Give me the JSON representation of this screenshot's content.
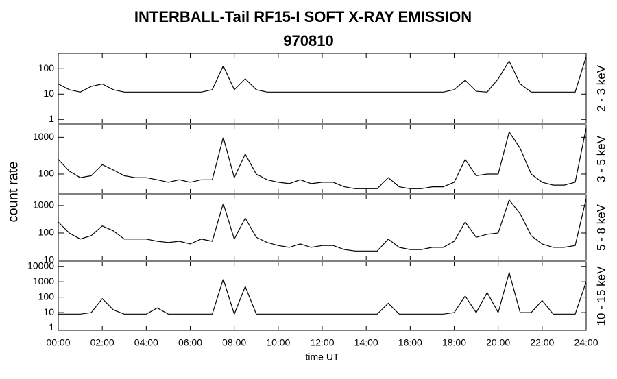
{
  "chart_data": [
    {
      "type": "line",
      "title": "INTERBALL-Tail RF15-I SOFT X-RAY EMISSION",
      "subtitle": "970810",
      "ylabel": "count rate",
      "channel": "2 - 3 keV",
      "yscale": "log",
      "color": "#000000",
      "xlim": [
        0,
        24
      ],
      "ylim": [
        0.7,
        400
      ],
      "yticks": [
        1,
        10,
        100
      ],
      "x": [
        0,
        0.5,
        1,
        1.5,
        2,
        2.5,
        3,
        3.5,
        4,
        4.5,
        5,
        5.5,
        6,
        6.5,
        7,
        7.5,
        8,
        8.5,
        9,
        9.5,
        10,
        10.5,
        11,
        11.5,
        12,
        12.5,
        13,
        13.5,
        14,
        14.5,
        15,
        15.5,
        16,
        16.5,
        17,
        17.5,
        18,
        18.5,
        19,
        19.5,
        20,
        20.5,
        21,
        21.5,
        22,
        22.5,
        23,
        23.5,
        24
      ],
      "values": [
        25,
        15,
        12,
        20,
        25,
        15,
        12,
        12,
        12,
        12,
        12,
        12,
        12,
        12,
        15,
        130,
        15,
        40,
        15,
        12,
        12,
        12,
        12,
        12,
        12,
        12,
        12,
        12,
        12,
        12,
        12,
        12,
        12,
        12,
        12,
        12,
        15,
        35,
        13,
        12,
        40,
        200,
        25,
        12,
        12,
        12,
        12,
        12,
        300
      ]
    },
    {
      "type": "line",
      "channel": "3 - 5 keV",
      "yscale": "log",
      "color": "#000000",
      "xlim": [
        0,
        24
      ],
      "ylim": [
        30,
        2200
      ],
      "yticks": [
        100,
        1000
      ],
      "x": [
        0,
        0.5,
        1,
        1.5,
        2,
        2.5,
        3,
        3.5,
        4,
        4.5,
        5,
        5.5,
        6,
        6.5,
        7,
        7.5,
        8,
        8.5,
        9,
        9.5,
        10,
        10.5,
        11,
        11.5,
        12,
        12.5,
        13,
        13.5,
        14,
        14.5,
        15,
        15.5,
        16,
        16.5,
        17,
        17.5,
        18,
        18.5,
        19,
        19.5,
        20,
        20.5,
        21,
        21.5,
        22,
        22.5,
        23,
        23.5,
        24
      ],
      "values": [
        250,
        120,
        80,
        90,
        180,
        130,
        90,
        80,
        80,
        70,
        60,
        70,
        60,
        70,
        70,
        1000,
        80,
        350,
        100,
        70,
        60,
        55,
        70,
        55,
        60,
        60,
        45,
        40,
        40,
        40,
        80,
        45,
        40,
        40,
        45,
        45,
        60,
        250,
        90,
        100,
        100,
        1400,
        500,
        100,
        60,
        50,
        50,
        60,
        1800
      ]
    },
    {
      "type": "line",
      "channel": "5 - 8 keV",
      "yscale": "log",
      "color": "#000000",
      "xlim": [
        0,
        24
      ],
      "ylim": [
        10,
        2500
      ],
      "yticks": [
        10,
        100,
        1000
      ],
      "x": [
        0,
        0.5,
        1,
        1.5,
        2,
        2.5,
        3,
        3.5,
        4,
        4.5,
        5,
        5.5,
        6,
        6.5,
        7,
        7.5,
        8,
        8.5,
        9,
        9.5,
        10,
        10.5,
        11,
        11.5,
        12,
        12.5,
        13,
        13.5,
        14,
        14.5,
        15,
        15.5,
        16,
        16.5,
        17,
        17.5,
        18,
        18.5,
        19,
        19.5,
        20,
        20.5,
        21,
        21.5,
        22,
        22.5,
        23,
        23.5,
        24
      ],
      "values": [
        250,
        100,
        60,
        80,
        180,
        120,
        60,
        60,
        60,
        50,
        45,
        50,
        40,
        60,
        50,
        1200,
        60,
        350,
        70,
        45,
        35,
        30,
        40,
        30,
        35,
        35,
        25,
        22,
        22,
        22,
        60,
        30,
        25,
        25,
        30,
        30,
        50,
        250,
        70,
        90,
        100,
        1600,
        500,
        80,
        40,
        30,
        30,
        35,
        1800
      ]
    },
    {
      "type": "line",
      "channel": "10 - 15 keV",
      "xlabel": "time UT",
      "yscale": "log",
      "color": "#000000",
      "xlim": [
        0,
        24
      ],
      "ylim": [
        0.7,
        20000
      ],
      "yticks": [
        1,
        10,
        100,
        1000,
        10000
      ],
      "xticks": [
        {
          "value": 0,
          "label": "00:00"
        },
        {
          "value": 2,
          "label": "02:00"
        },
        {
          "value": 4,
          "label": "04:00"
        },
        {
          "value": 6,
          "label": "06:00"
        },
        {
          "value": 8,
          "label": "08:00"
        },
        {
          "value": 10,
          "label": "10:00"
        },
        {
          "value": 12,
          "label": "12:00"
        },
        {
          "value": 14,
          "label": "14:00"
        },
        {
          "value": 16,
          "label": "16:00"
        },
        {
          "value": 18,
          "label": "18:00"
        },
        {
          "value": 20,
          "label": "20:00"
        },
        {
          "value": 22,
          "label": "22:00"
        },
        {
          "value": 24,
          "label": "24:00"
        }
      ],
      "x": [
        0,
        0.5,
        1,
        1.5,
        2,
        2.5,
        3,
        3.5,
        4,
        4.5,
        5,
        5.5,
        6,
        6.5,
        7,
        7.5,
        8,
        8.5,
        9,
        9.5,
        10,
        10.5,
        11,
        11.5,
        12,
        12.5,
        13,
        13.5,
        14,
        14.5,
        15,
        15.5,
        16,
        16.5,
        17,
        17.5,
        18,
        18.5,
        19,
        19.5,
        20,
        20.5,
        21,
        21.5,
        22,
        22.5,
        23,
        23.5,
        24
      ],
      "values": [
        8,
        8,
        8,
        10,
        80,
        15,
        8,
        8,
        8,
        20,
        8,
        8,
        8,
        8,
        8,
        1500,
        8,
        500,
        8,
        8,
        8,
        8,
        8,
        8,
        8,
        8,
        8,
        8,
        8,
        8,
        40,
        8,
        8,
        8,
        8,
        8,
        10,
        120,
        10,
        200,
        10,
        4000,
        10,
        10,
        60,
        8,
        8,
        8,
        1000
      ]
    }
  ]
}
